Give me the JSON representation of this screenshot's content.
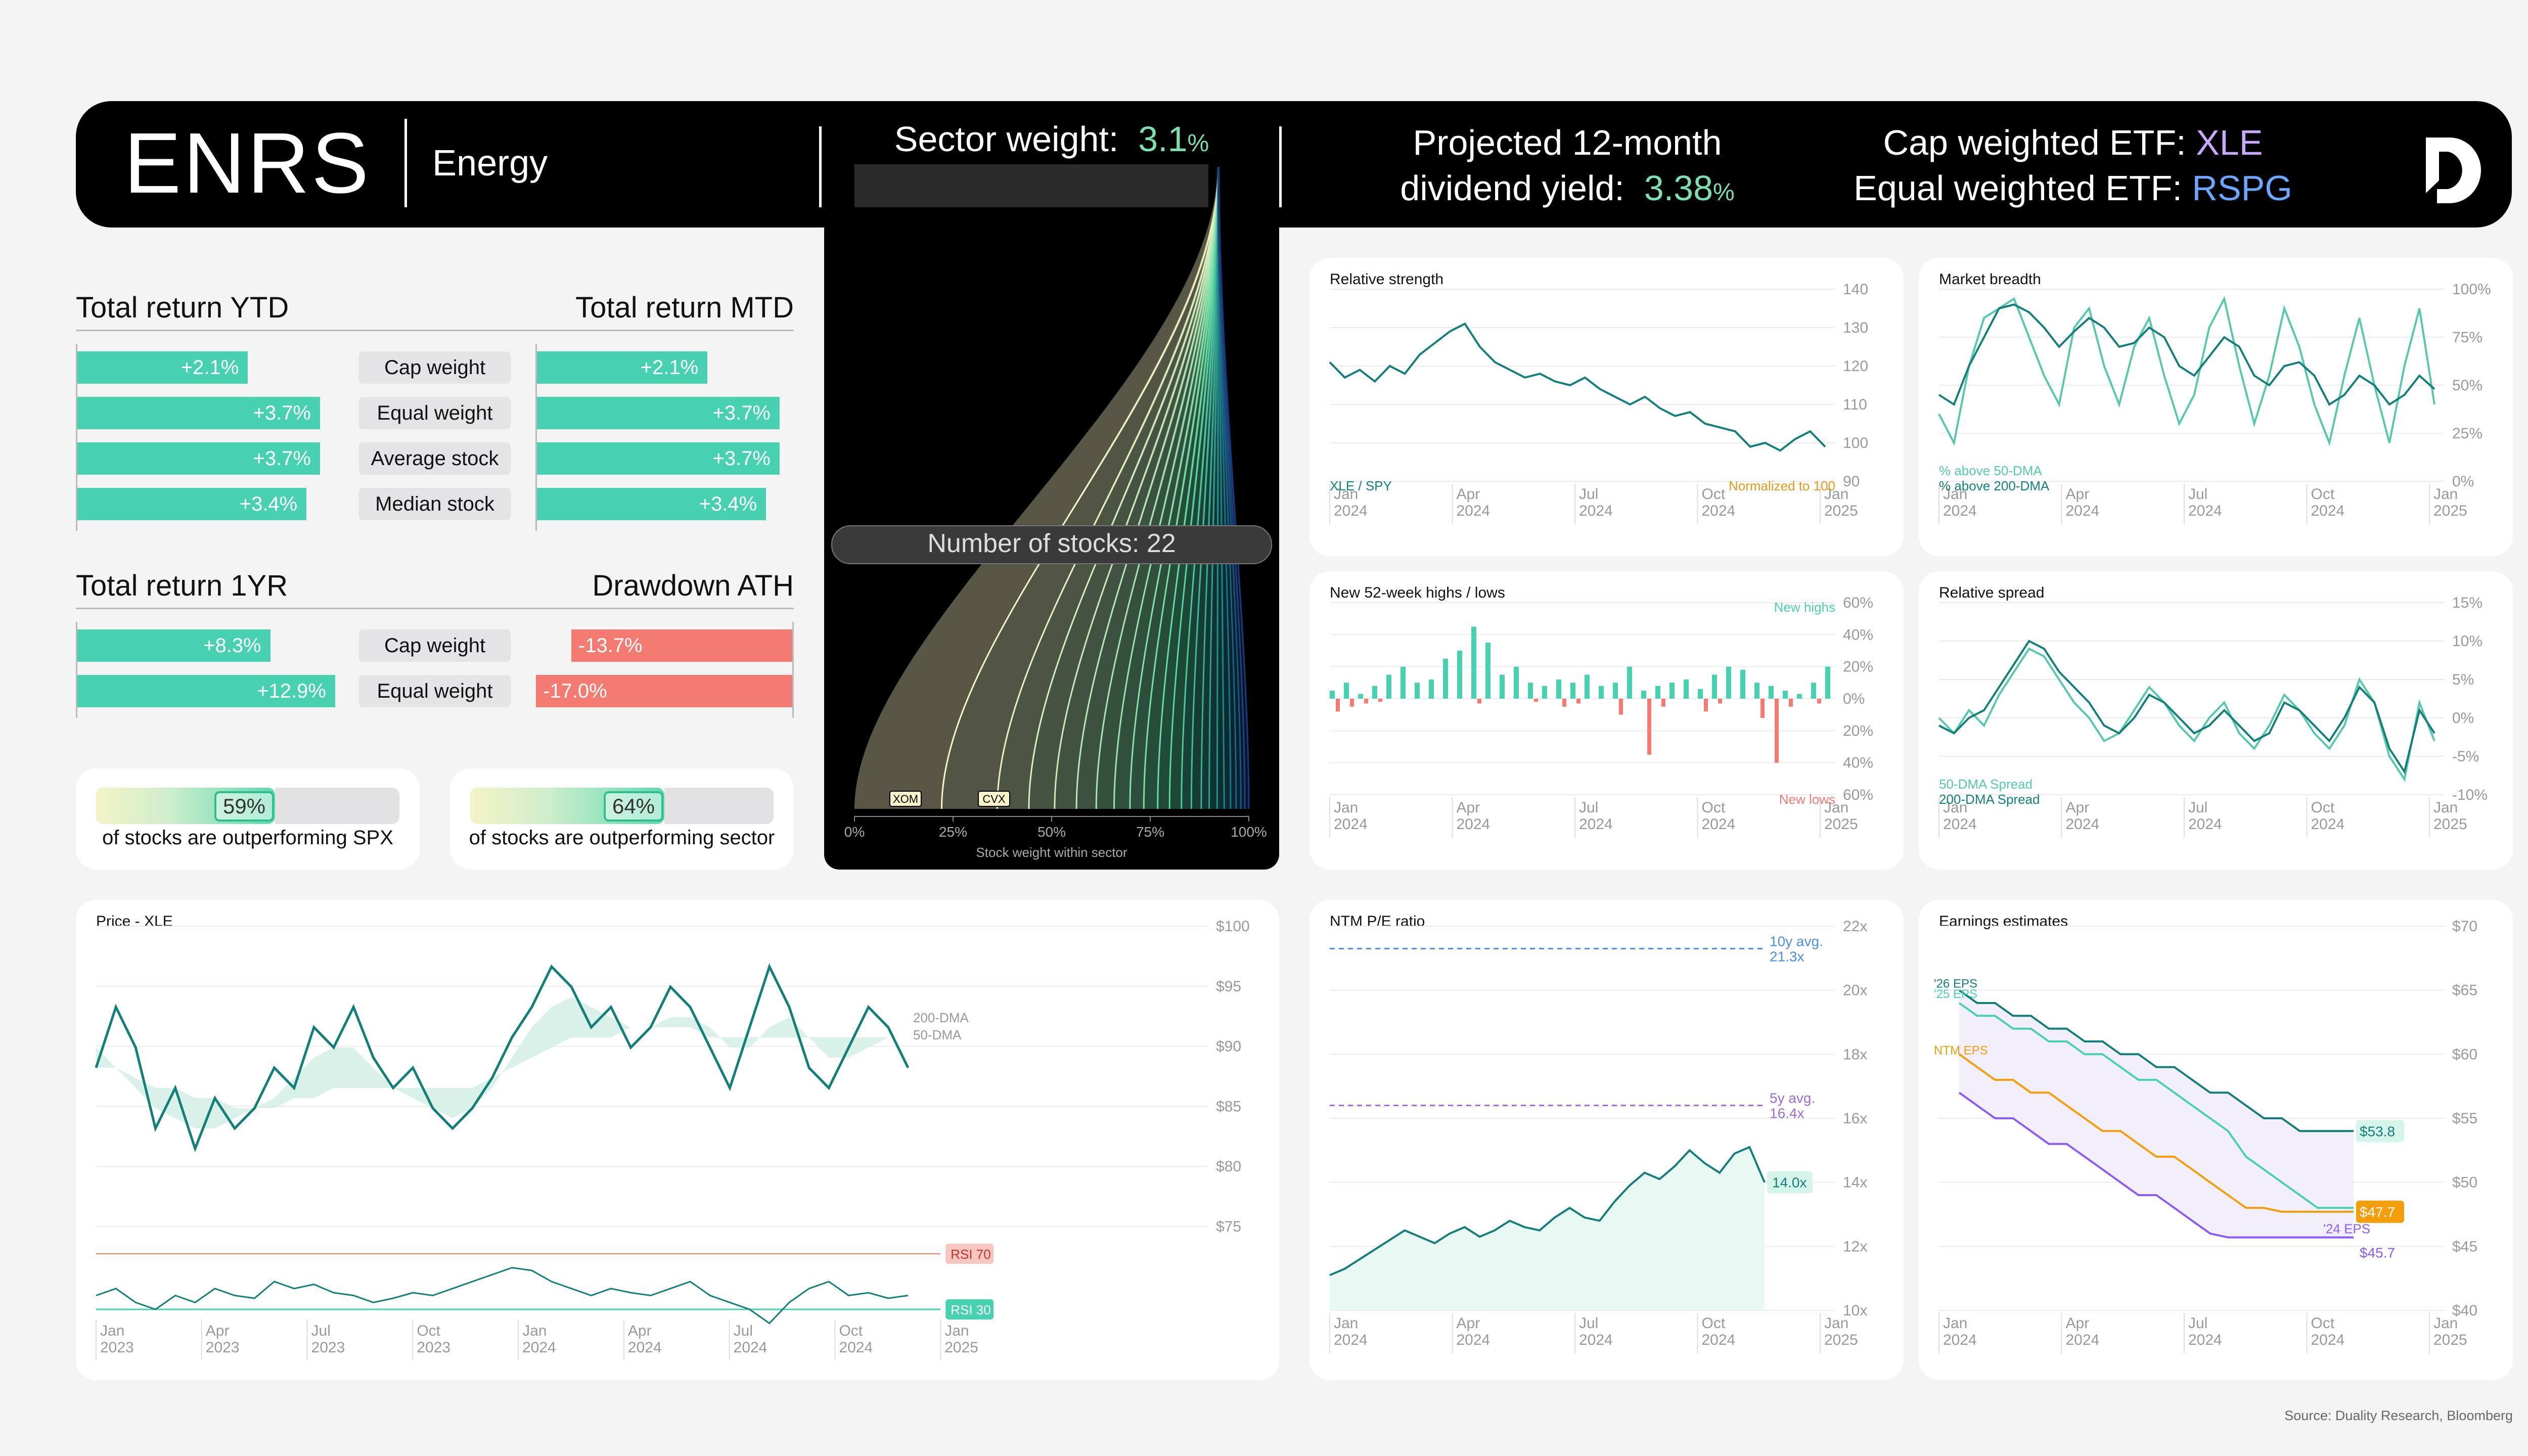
{
  "header": {
    "ticker": "ENRS",
    "sector": "Energy",
    "sector_weight_label": "Sector weight:",
    "sector_weight_value": "3.1",
    "sector_weight_unit": "%",
    "dividend_label_1": "Projected 12-month",
    "dividend_label_2": "dividend yield:",
    "dividend_value": "3.38",
    "dividend_unit": "%",
    "cap_etf_label": "Cap weighted ETF:",
    "cap_etf": "XLE",
    "eq_etf_label": "Equal weighted ETF:",
    "eq_etf": "RSPG",
    "logo_icon": "duality-logo-icon"
  },
  "returns": {
    "ytd_title": "Total return YTD",
    "mtd_title": "Total return MTD",
    "yr_title": "Total return 1YR",
    "ath_title": "Drawdown ATH",
    "rows": [
      {
        "label": "Cap weight",
        "ytd": "+2.1%",
        "mtd": "+2.1%",
        "ytd_v": 2.1,
        "mtd_v": 2.1
      },
      {
        "label": "Equal weight",
        "ytd": "+3.7%",
        "mtd": "+3.7%",
        "ytd_v": 3.7,
        "mtd_v": 3.7
      },
      {
        "label": "Average stock",
        "ytd": "+3.7%",
        "mtd": "+3.7%",
        "ytd_v": 3.7,
        "mtd_v": 3.7
      },
      {
        "label": "Median stock",
        "ytd": "+3.4%",
        "mtd": "+3.4%",
        "ytd_v": 3.4,
        "mtd_v": 3.4
      }
    ],
    "yr_rows": [
      {
        "label": "Cap weight",
        "yr": "+8.3%",
        "ath": "-13.7%",
        "yr_v": 8.3,
        "ath_v": -13.7
      },
      {
        "label": "Equal weight",
        "yr": "+12.9%",
        "ath": "-17.0%",
        "yr_v": 12.9,
        "ath_v": -17.0
      }
    ]
  },
  "outperform": [
    {
      "pct": "59%",
      "value": 0.59,
      "text": "of stocks are outperforming SPX"
    },
    {
      "pct": "64%",
      "value": 0.64,
      "text": "of stocks are outperforming sector"
    }
  ],
  "funnel": {
    "label": "Number of stocks: 22",
    "count": 22,
    "marked": [
      "XOM",
      "CVX"
    ],
    "x_ticks": [
      "0%",
      "25%",
      "50%",
      "75%",
      "100%"
    ],
    "x_label": "Stock weight within sector"
  },
  "x_ticks_2024": [
    "Jan\n2024",
    "Apr\n2024",
    "Jul\n2024",
    "Oct\n2024",
    "Jan\n2025"
  ],
  "x_ticks_2023": [
    "Jan\n2023",
    "Apr\n2023",
    "Jul\n2023",
    "Oct\n2023",
    "Jan\n2024",
    "Apr\n2024",
    "Jul\n2024",
    "Oct\n2024",
    "Jan\n2025"
  ],
  "chart_data": [
    {
      "id": "rel-strength",
      "type": "line",
      "title": "Relative strength",
      "series": [
        {
          "name": "XLE / SPY",
          "values": [
            121,
            117,
            119,
            116,
            120,
            118,
            123,
            126,
            129,
            131,
            125,
            121,
            119,
            117,
            118,
            116,
            115,
            117,
            114,
            112,
            110,
            112,
            109,
            107,
            108,
            105,
            104,
            103,
            99,
            100,
            98,
            101,
            103,
            99
          ]
        }
      ],
      "annotation": "Normalized to 100",
      "y_ticks": [
        "140",
        "130",
        "120",
        "110",
        "100",
        "90"
      ],
      "ylim": [
        90,
        140
      ]
    },
    {
      "id": "breadth",
      "type": "line",
      "title": "Market breadth",
      "series": [
        {
          "name": "% above 50-DMA",
          "values": [
            35,
            20,
            60,
            85,
            90,
            95,
            75,
            55,
            40,
            80,
            90,
            60,
            40,
            70,
            85,
            55,
            30,
            45,
            80,
            95,
            60,
            30,
            55,
            90,
            70,
            40,
            20,
            55,
            85,
            50,
            20,
            60,
            90,
            40
          ]
        },
        {
          "name": "% above 200-DMA",
          "values": [
            45,
            40,
            60,
            75,
            90,
            92,
            88,
            80,
            70,
            78,
            85,
            80,
            70,
            72,
            80,
            75,
            60,
            55,
            65,
            75,
            70,
            55,
            50,
            60,
            62,
            55,
            40,
            45,
            55,
            50,
            40,
            45,
            55,
            48
          ]
        }
      ],
      "y_ticks": [
        "100%",
        "75%",
        "50%",
        "25%",
        "0%"
      ],
      "ylim": [
        0,
        100
      ]
    },
    {
      "id": "highs-lows",
      "type": "bar",
      "title": "New 52-week highs / lows",
      "series": [
        {
          "name": "New highs",
          "values": [
            5,
            10,
            3,
            8,
            15,
            20,
            10,
            12,
            25,
            30,
            45,
            35,
            15,
            20,
            10,
            8,
            12,
            10,
            15,
            8,
            10,
            20,
            5,
            8,
            10,
            12,
            6,
            15,
            20,
            18,
            10,
            8,
            5,
            3,
            10,
            20
          ]
        },
        {
          "name": "New lows",
          "values": [
            -8,
            -5,
            -3,
            -2,
            0,
            0,
            0,
            0,
            0,
            0,
            -3,
            0,
            0,
            0,
            -2,
            0,
            -5,
            -3,
            0,
            0,
            -10,
            0,
            -35,
            -5,
            0,
            0,
            -8,
            -3,
            0,
            0,
            -12,
            -40,
            -5,
            0,
            -3,
            0
          ]
        }
      ],
      "y_ticks": [
        "60%",
        "40%",
        "20%",
        "0%",
        "20%",
        "40%",
        "60%"
      ],
      "ylim": [
        -60,
        60
      ]
    },
    {
      "id": "rel-spread",
      "type": "line",
      "title": "Relative spread",
      "series": [
        {
          "name": "50-DMA Spread",
          "values": [
            0,
            -2,
            1,
            -1,
            3,
            6,
            9,
            8,
            5,
            2,
            0,
            -3,
            -2,
            1,
            4,
            2,
            -1,
            -3,
            0,
            2,
            -2,
            -4,
            -1,
            3,
            1,
            -2,
            -4,
            -1,
            5,
            2,
            -5,
            -8,
            2,
            -3
          ]
        },
        {
          "name": "200-DMA Spread",
          "values": [
            -1,
            -2,
            0,
            1,
            4,
            7,
            10,
            9,
            6,
            4,
            2,
            -1,
            -2,
            0,
            3,
            2,
            0,
            -2,
            -1,
            1,
            -1,
            -3,
            -2,
            2,
            1,
            -1,
            -3,
            0,
            4,
            2,
            -4,
            -7,
            1,
            -2
          ]
        }
      ],
      "y_ticks": [
        "15%",
        "10%",
        "5%",
        "0%",
        "-5%",
        "-10%"
      ],
      "ylim": [
        -10,
        15
      ]
    },
    {
      "id": "price",
      "type": "line",
      "title": "Price - XLE",
      "series": [
        {
          "name": "Price",
          "values": [
            86,
            92,
            88,
            80,
            84,
            78,
            83,
            80,
            82,
            86,
            84,
            90,
            88,
            92,
            87,
            84,
            86,
            82,
            80,
            82,
            85,
            89,
            92,
            96,
            94,
            90,
            92,
            88,
            90,
            94,
            92,
            88,
            84,
            90,
            96,
            92,
            86,
            84,
            88,
            92,
            90,
            86
          ]
        },
        {
          "name": "200-DMA",
          "values": [
            86,
            86,
            85,
            84,
            84,
            83,
            83,
            82,
            82,
            82,
            83,
            83,
            84,
            84,
            84,
            84,
            84,
            84,
            84,
            84,
            85,
            86,
            87,
            88,
            89,
            89,
            89,
            90,
            90,
            90,
            90,
            89,
            89,
            89,
            89,
            89,
            89,
            89,
            89,
            89,
            89,
            89
          ]
        },
        {
          "name": "50-DMA",
          "values": [
            88,
            86,
            84,
            82,
            81,
            80,
            80,
            81,
            82,
            83,
            85,
            87,
            88,
            88,
            86,
            84,
            83,
            82,
            81,
            82,
            84,
            87,
            90,
            92,
            93,
            92,
            91,
            90,
            90,
            91,
            91,
            90,
            88,
            88,
            90,
            91,
            89,
            87,
            87,
            88,
            89,
            89
          ]
        }
      ],
      "rsi": [
        50,
        55,
        45,
        40,
        50,
        45,
        55,
        50,
        48,
        60,
        55,
        58,
        52,
        50,
        45,
        48,
        52,
        50,
        55,
        60,
        65,
        70,
        68,
        60,
        55,
        50,
        55,
        52,
        50,
        55,
        60,
        50,
        45,
        40,
        30,
        45,
        55,
        60,
        50,
        52,
        48,
        50
      ],
      "rsi_labels": [
        "RSI 70",
        "RSI 30"
      ],
      "y_ticks": [
        "$100",
        "$95",
        "$90",
        "$85",
        "$80",
        "$75"
      ],
      "ylim": [
        70,
        100
      ]
    },
    {
      "id": "pe",
      "type": "line",
      "title": "NTM P/E ratio",
      "series": [
        {
          "name": "NTM P/E",
          "values": [
            11.1,
            11.3,
            11.6,
            11.9,
            12.2,
            12.5,
            12.3,
            12.1,
            12.4,
            12.6,
            12.3,
            12.5,
            12.8,
            12.6,
            12.5,
            12.9,
            13.2,
            12.9,
            12.8,
            13.4,
            13.9,
            14.3,
            14.1,
            14.5,
            15.0,
            14.6,
            14.3,
            14.9,
            15.1,
            14.0
          ]
        }
      ],
      "annotations": [
        {
          "label": "10y avg.",
          "value": "21.3x",
          "y": 21.3
        },
        {
          "label": "5y avg.",
          "value": "16.4x",
          "y": 16.4
        }
      ],
      "end_label": "14.0x",
      "y_ticks": [
        "22x",
        "20x",
        "18x",
        "16x",
        "14x",
        "12x",
        "10x"
      ],
      "ylim": [
        10,
        22
      ]
    },
    {
      "id": "eps",
      "type": "line",
      "title": "Earnings estimates",
      "series": [
        {
          "name": "'25 EPS",
          "values": [
            64,
            63,
            63,
            62,
            62,
            61,
            61,
            60,
            60,
            59,
            58,
            58,
            57,
            56,
            55,
            54,
            52,
            51,
            50,
            49,
            48,
            48,
            48
          ]
        },
        {
          "name": "'26 EPS",
          "values": [
            65,
            64,
            64,
            63,
            63,
            62,
            62,
            61,
            61,
            60,
            60,
            59,
            59,
            58,
            57,
            57,
            56,
            55,
            55,
            54,
            54,
            54,
            54
          ]
        },
        {
          "name": "NTM EPS",
          "values": [
            60,
            59,
            58,
            58,
            57,
            57,
            56,
            55,
            54,
            54,
            53,
            52,
            52,
            51,
            50,
            49,
            48,
            48,
            47.7,
            47.7,
            47.7,
            47.7,
            47.7
          ]
        },
        {
          "name": "'24 EPS",
          "values": [
            57,
            56,
            55,
            55,
            54,
            53,
            53,
            52,
            51,
            50,
            49,
            49,
            48,
            47,
            46,
            45.7,
            45.7,
            45.7,
            45.7,
            45.7,
            45.7,
            45.7,
            45.7
          ]
        }
      ],
      "end_labels": [
        "$53.8",
        "$47.7",
        "$45.7"
      ],
      "y_ticks": [
        "$70",
        "$65",
        "$60",
        "$55",
        "$50",
        "$45",
        "$40"
      ],
      "ylim": [
        40,
        70
      ]
    }
  ],
  "source": "Source: Duality Research, Bloomberg"
}
